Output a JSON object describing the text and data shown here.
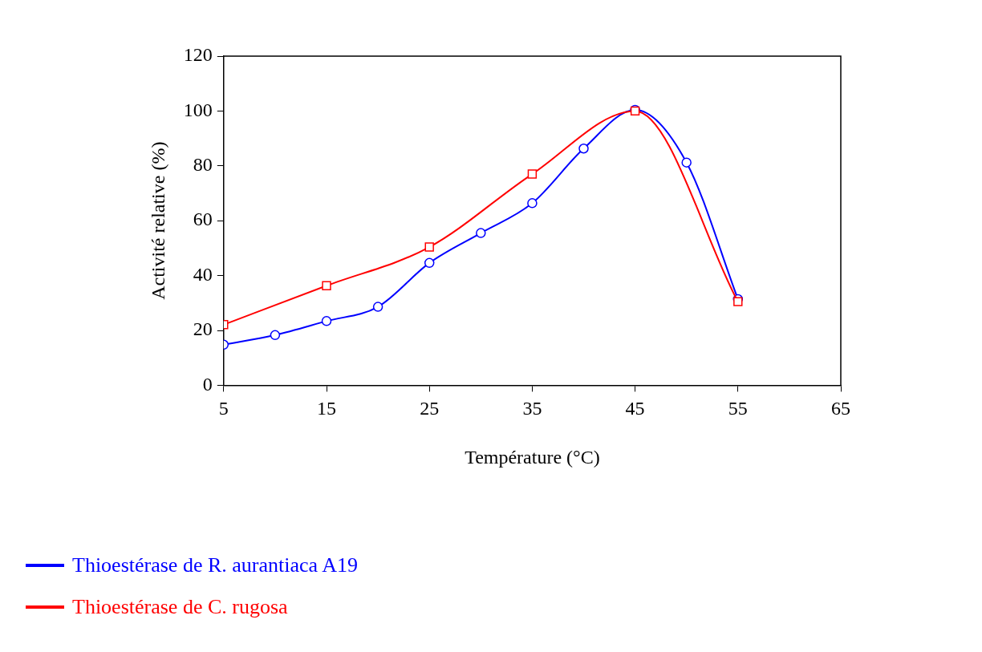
{
  "chart_data": {
    "type": "line",
    "xlabel": "Température (°C)",
    "ylabel": "Activité relative (%)",
    "xlim": [
      5,
      65
    ],
    "xticks": [
      5,
      15,
      25,
      35,
      45,
      55,
      65
    ],
    "ylim": [
      0,
      120
    ],
    "yticks": [
      0,
      20,
      40,
      60,
      80,
      100,
      120
    ],
    "grid": false,
    "legend": "bottom left",
    "series": [
      {
        "name": "Thioestérase de R. aurantiaca A19",
        "color": "#0000ff",
        "marker": "circle",
        "x": [
          5,
          10,
          15,
          20,
          25,
          30,
          35,
          40,
          45,
          50,
          55
        ],
        "values": [
          14.8,
          18.3,
          23.4,
          28.6,
          44.6,
          55.5,
          66.4,
          86.3,
          100.4,
          81.2,
          31.4
        ]
      },
      {
        "name": "Thioestérase de C. rugosa",
        "color": "#ff0000",
        "marker": "square",
        "x": [
          5,
          15,
          25,
          35,
          45,
          55
        ],
        "values": [
          22.1,
          36.3,
          50.4,
          77,
          100,
          30.5
        ]
      }
    ]
  }
}
